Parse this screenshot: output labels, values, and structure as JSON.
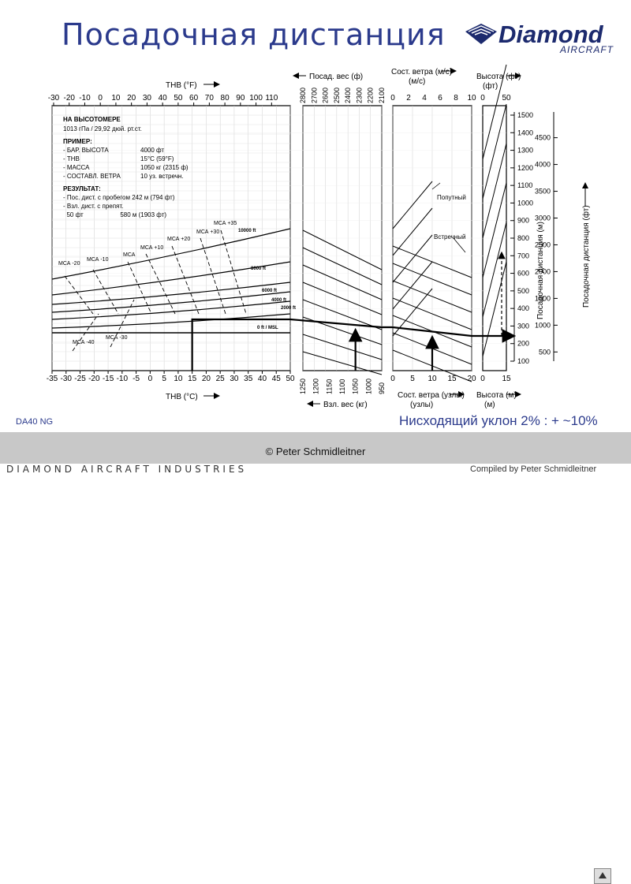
{
  "slide": {
    "title": "Посадочная дистанция",
    "model": "DA40 NG",
    "slope_note": "Нисходящий уклон 2% : + ~10%",
    "copyright": "© Peter Schmidleitner",
    "compiled": "Compiled by Peter Schmidleitner",
    "company": "DIAMOND AIRCRAFT INDUSTRIES"
  },
  "logo": {
    "word": "Diamond",
    "sub": "AIRCRAFT"
  },
  "chart_data": {
    "type": "line",
    "panels": {
      "temperature": {
        "top_label": "ТНВ (°F)",
        "bottom_label": "ТНВ (°C)",
        "top_ticks": [
          -30,
          -20,
          -10,
          0,
          10,
          20,
          30,
          40,
          50,
          60,
          70,
          80,
          90,
          100,
          110
        ],
        "bottom_ticks": [
          -35,
          -30,
          -25,
          -20,
          -15,
          -10,
          -5,
          0,
          5,
          10,
          15,
          20,
          25,
          30,
          35,
          40,
          45,
          50
        ],
        "altitude_lines": [
          "0 ft / MSL",
          "2000 ft",
          "4000 ft",
          "6000 ft",
          "8000 ft",
          "10000 ft"
        ],
        "isa_lines": [
          "МСА -40",
          "МСА -30",
          "МСА -20",
          "МСА -10",
          "МСА",
          "МСА +10",
          "МСА +20",
          "МСА +30",
          "МСА +35"
        ]
      },
      "weight": {
        "top_label": "Посад. вес (ф)",
        "bottom_label": "Взл. вес (кг)",
        "top_ticks": [
          2800,
          2700,
          2600,
          2500,
          2400,
          2300,
          2200,
          2100
        ],
        "bottom_ticks": [
          1250,
          1200,
          1150,
          1100,
          1050,
          1000,
          950
        ]
      },
      "wind": {
        "top_label": "Сост. ветра (м/с)",
        "bottom_label": "Сост. ветра (узлы)",
        "top_ticks": [
          0,
          2,
          4,
          6,
          8,
          10
        ],
        "bottom_ticks": [
          0,
          5,
          10,
          15,
          20
        ],
        "tailwind_label": "Попутный",
        "headwind_label": "Встречный"
      },
      "obstacle": {
        "top_label": "Высота (фт)",
        "bottom_label": "Высота (м)",
        "top_ticks": [
          0,
          50
        ],
        "bottom_ticks": [
          0,
          15
        ]
      },
      "distance": {
        "axis_m_label": "Посадочная дистанция (м)",
        "axis_ft_label": "Посадочная дистанция (фт)",
        "m_ticks": [
          100,
          200,
          300,
          400,
          500,
          600,
          700,
          800,
          900,
          1000,
          1100,
          1200,
          1300,
          1400,
          1500
        ],
        "ft_ticks": [
          500,
          1000,
          1500,
          2000,
          2500,
          3000,
          3500,
          4000,
          4500
        ]
      }
    },
    "example": {
      "altimeter_heading": "НА ВЫСОТОМЕРЕ",
      "altimeter_value": "1013 гПа / 29,92 дюй. рт.ст.",
      "example_heading": "ПРИМЕР:",
      "rows": [
        [
          "- БАР. ВЫСОТА",
          "4000 фт"
        ],
        [
          "- ТНВ",
          "15°C (59°F)"
        ],
        [
          "- МАССА",
          "1050 кг (2315 ф)"
        ],
        [
          "- СОСТАВЛ. ВЕТРА",
          "10 уз. встречн."
        ]
      ],
      "result_heading": "РЕЗУЛЬТАТ:",
      "result_1": "- Пос. дист. с пробегом  242 м (794 фт)",
      "result_2": "- Взл. дист. с препят.",
      "result_3": "  50 фт                     580 м (1903 фт)"
    }
  }
}
